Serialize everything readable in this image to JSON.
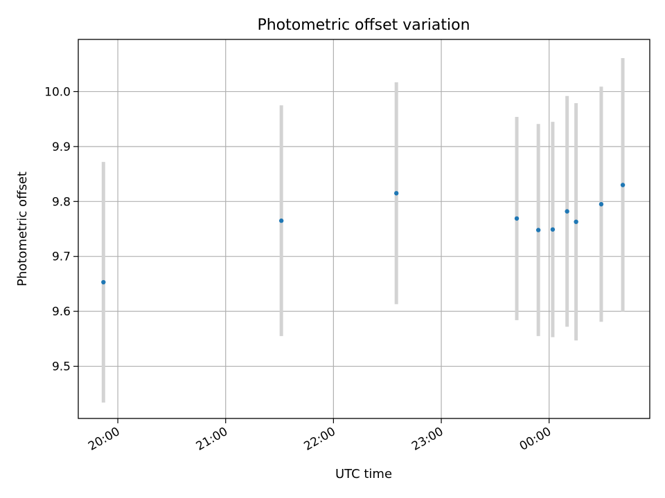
{
  "chart_data": {
    "type": "scatter",
    "title": "Photometric offset variation",
    "xlabel": "UTC time",
    "ylabel": "Photometric offset",
    "x_tick_labels": [
      "20:00",
      "21:00",
      "22:00",
      "23:00",
      "00:00"
    ],
    "x_ticks": [
      "20:00",
      "21:00",
      "22:00",
      "23:00",
      "00:00"
    ],
    "xlim": [
      "19:38",
      "00:56"
    ],
    "y_ticks": [
      9.5,
      9.6,
      9.7,
      9.8,
      9.9,
      10.0
    ],
    "y_tick_labels": [
      "9.5",
      "9.6",
      "9.7",
      "9.8",
      "9.9",
      "10.0"
    ],
    "ylim": [
      9.405,
      10.095
    ],
    "grid": true,
    "errorbar_color": "#d3d3d3",
    "marker_color": "#1f77b4",
    "points": [
      {
        "x": "19:52",
        "y": 9.653,
        "err": 0.219
      },
      {
        "x": "21:31",
        "y": 9.765,
        "err": 0.21
      },
      {
        "x": "22:35",
        "y": 9.815,
        "err": 0.202
      },
      {
        "x": "23:42",
        "y": 9.769,
        "err": 0.185
      },
      {
        "x": "23:54",
        "y": 9.748,
        "err": 0.193
      },
      {
        "x": "00:02",
        "y": 9.749,
        "err": 0.196
      },
      {
        "x": "00:10",
        "y": 9.782,
        "err": 0.21
      },
      {
        "x": "00:15",
        "y": 9.763,
        "err": 0.216
      },
      {
        "x": "00:29",
        "y": 9.795,
        "err": 0.214
      },
      {
        "x": "00:41",
        "y": 9.83,
        "err": 0.231
      }
    ]
  }
}
